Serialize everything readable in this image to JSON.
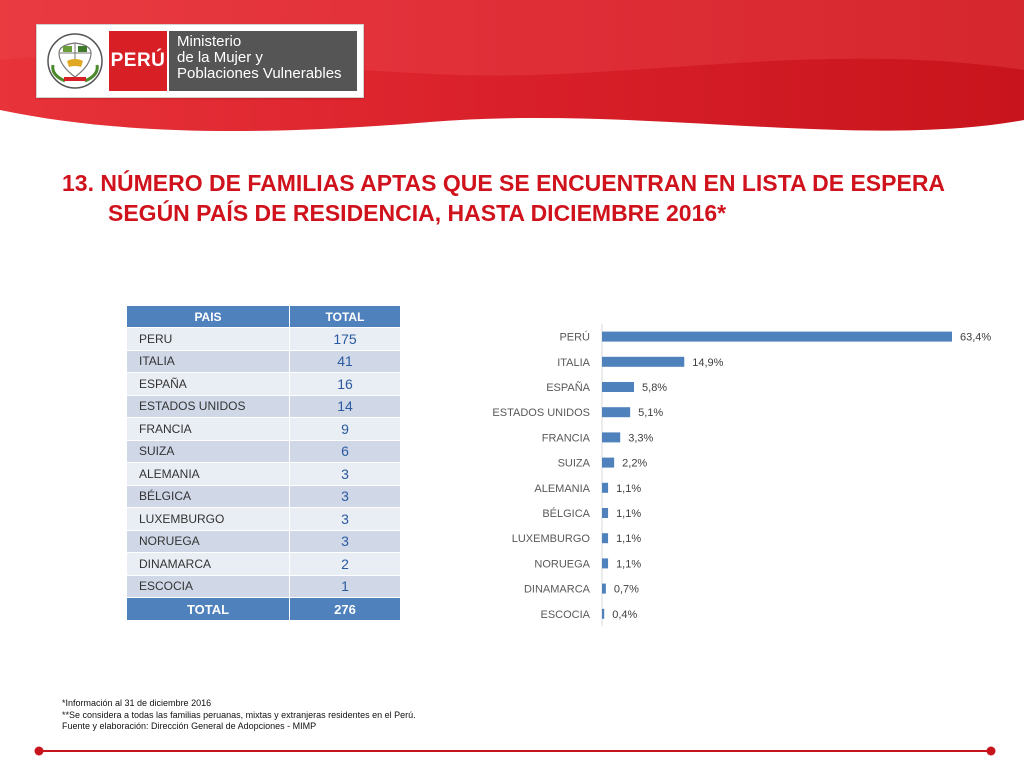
{
  "header": {
    "peru_label": "PERÚ",
    "ministry_lines": [
      "Ministerio",
      "de la Mujer y",
      "Poblaciones Vulnerables"
    ],
    "emblem_text": "REPÚBLICA DEL PERÚ",
    "brand_red": "#d91f26",
    "ministry_gray": "#555555"
  },
  "title": {
    "line1": "13. NÚMERO DE FAMILIAS APTAS QUE SE ENCUENTRAN EN LISTA DE ESPERA",
    "line2": "SEGÚN PAÍS DE RESIDENCIA, HASTA DICIEMBRE 2016*"
  },
  "table": {
    "headers": [
      "PAIS",
      "TOTAL"
    ],
    "rows": [
      {
        "country": "PERU",
        "total": "175"
      },
      {
        "country": "ITALIA",
        "total": "41"
      },
      {
        "country": "ESPAÑA",
        "total": "16"
      },
      {
        "country": "ESTADOS UNIDOS",
        "total": "14"
      },
      {
        "country": "FRANCIA",
        "total": "9"
      },
      {
        "country": "SUIZA",
        "total": "6"
      },
      {
        "country": "ALEMANIA",
        "total": "3"
      },
      {
        "country": "BÉLGICA",
        "total": "3"
      },
      {
        "country": "LUXEMBURGO",
        "total": "3"
      },
      {
        "country": "NORUEGA",
        "total": "3"
      },
      {
        "country": "DINAMARCA",
        "total": "2"
      },
      {
        "country": "ESCOCIA",
        "total": "1"
      }
    ],
    "total_label": "TOTAL",
    "total_value": "276",
    "header_color": "#4f81bd"
  },
  "chart_data": {
    "type": "bar",
    "orientation": "horizontal",
    "categories": [
      "PERÚ",
      "ITALIA",
      "ESPAÑA",
      "ESTADOS UNIDOS",
      "FRANCIA",
      "SUIZA",
      "ALEMANIA",
      "BÉLGICA",
      "LUXEMBURGO",
      "NORUEGA",
      "DINAMARCA",
      "ESCOCIA"
    ],
    "values": [
      63.4,
      14.9,
      5.8,
      5.1,
      3.3,
      2.2,
      1.1,
      1.1,
      1.1,
      1.1,
      0.7,
      0.4
    ],
    "labels": [
      "63,4%",
      "14,9%",
      "5,8%",
      "5,1%",
      "3,3%",
      "2,2%",
      "1,1%",
      "1,1%",
      "1,1%",
      "1,1%",
      "0,7%",
      "0,4%"
    ],
    "title": "",
    "xlabel": "",
    "ylabel": "",
    "grid": false,
    "legend": "none",
    "bar_color": "#4f81bd"
  },
  "footnotes": [
    "*Información al 31 de diciembre 2016",
    "**Se considera a todas las familias peruanas, mixtas y extranjeras residentes en el Perú.",
    "Fuente y elaboración: Dirección General de Adopciones - MIMP"
  ]
}
